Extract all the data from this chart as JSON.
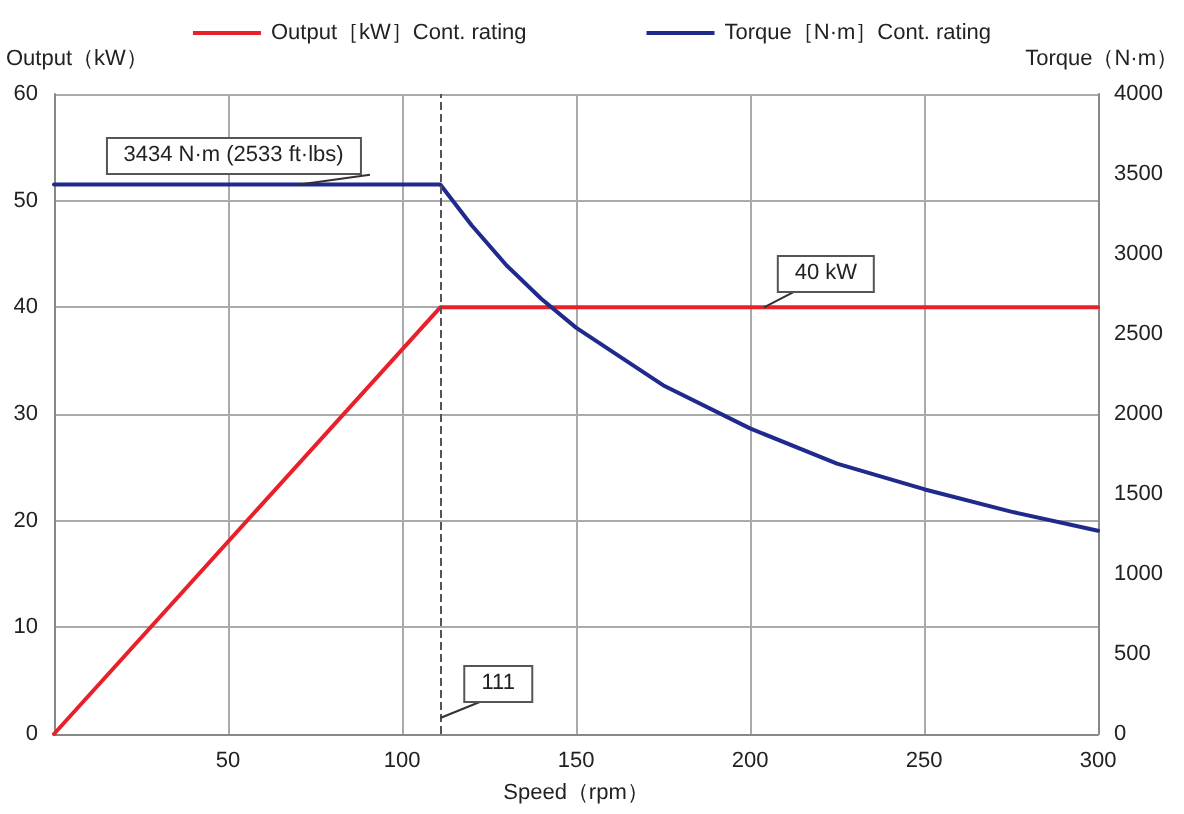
{
  "chart_data": {
    "type": "line",
    "xlabel": "Speed（rpm）",
    "ylabel": "Output（kW）",
    "y2label": "Torque（N·m）",
    "series": [
      {
        "name": "Output［kW］Cont. rating",
        "color": "#e8202a",
        "x": [
          0,
          111,
          300
        ],
        "values": [
          0,
          40,
          40
        ]
      },
      {
        "name": "Torque［N·m］Cont. rating",
        "color": "#1f2a8c",
        "axis": "y2",
        "x": [
          0,
          111,
          120,
          130,
          140,
          150,
          175,
          200,
          225,
          250,
          275,
          300
        ],
        "values": [
          3434,
          3434,
          3180,
          2930,
          2720,
          2540,
          2180,
          1910,
          1690,
          1530,
          1390,
          1270
        ]
      }
    ],
    "xlim": [
      0,
      300
    ],
    "xticks": [
      50,
      100,
      150,
      200,
      250,
      300
    ],
    "ylim": [
      0,
      60
    ],
    "yticks": [
      0,
      10,
      20,
      30,
      40,
      50,
      60
    ],
    "y2lim": [
      0,
      4000
    ],
    "y2ticks": [
      0,
      500,
      1000,
      1500,
      2000,
      2500,
      3000,
      3500,
      4000
    ],
    "ref_lines": [
      {
        "axis": "x",
        "value": 111,
        "color": "#555555",
        "line_style": "dashed"
      }
    ],
    "annotations": [
      {
        "text": "3434 N·m (2533 ft·lbs)",
        "x": 70,
        "y": 51.5
      },
      {
        "text": "40 kW",
        "x": 204,
        "y": 40
      },
      {
        "text": "111",
        "x": 111,
        "y": 1.5
      }
    ],
    "grid": true,
    "legend": "top",
    "marker": "none",
    "line_style": "solid"
  }
}
